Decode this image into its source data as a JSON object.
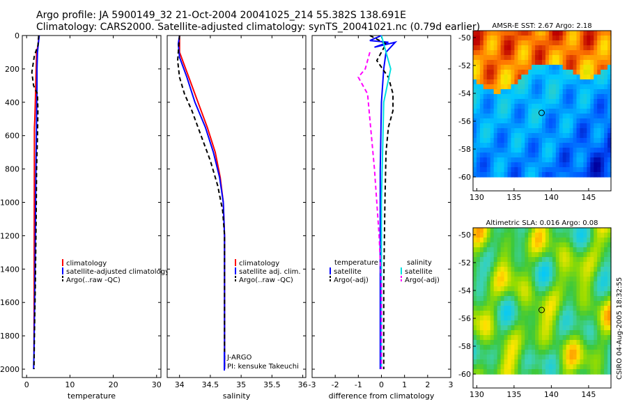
{
  "header": {
    "line1": "Argo profile: JA 5900149_32 21-Oct-2004 20041025_214 55.382S 138.691E",
    "line2": "Climatology: CARS2000. Satellite-adjusted climatology: synTS_20041021.nc (0.79d earlier)"
  },
  "credit": "CSIRO 04-Aug-2005 18:32:55",
  "colors": {
    "climatology": "#ff0000",
    "satellite": "#0000ff",
    "argo": "#000000",
    "salinity_satellite": "#00e0e0",
    "salinity_argo": "#ff00ff"
  },
  "chart_data": [
    {
      "type": "line",
      "xlabel": "temperature",
      "ylabel": "",
      "xlim": [
        -1,
        31
      ],
      "ylim": [
        2050,
        0
      ],
      "xticks": [
        0,
        10,
        20,
        30
      ],
      "yticks": [
        0,
        200,
        400,
        600,
        800,
        1000,
        1200,
        1400,
        1600,
        1800,
        2000
      ],
      "legend": [
        "climatology",
        "satellite-adjusted climatology",
        "Argo(..raw -QC)"
      ],
      "series": [
        {
          "name": "climatology",
          "color": "#ff0000",
          "dash": "",
          "x": [
            2.8,
            2.7,
            2.3,
            2.2,
            2.1,
            2.0,
            1.9,
            1.8,
            1.7
          ],
          "y": [
            0,
            50,
            100,
            200,
            300,
            400,
            500,
            550,
            1900
          ]
        },
        {
          "name": "satellite-adjusted climatology",
          "color": "#0000ff",
          "dash": "",
          "x": [
            2.9,
            2.7,
            2.5,
            2.4,
            2.4,
            2.3,
            2.2,
            2.1,
            2.0,
            1.9,
            1.8,
            1.7,
            1.6
          ],
          "y": [
            0,
            50,
            100,
            200,
            300,
            500,
            700,
            900,
            1200,
            1500,
            1700,
            1900,
            2000
          ]
        },
        {
          "name": "Argo(..raw -QC)",
          "color": "#000000",
          "dash": "6,4",
          "x": [
            2.8,
            2.6,
            1.8,
            1.2,
            1.6,
            2.5,
            2.6,
            2.5,
            2.3,
            2.2,
            2.0,
            1.8,
            1.7
          ],
          "y": [
            0,
            60,
            120,
            220,
            300,
            350,
            450,
            600,
            800,
            1100,
            1500,
            1800,
            2000
          ]
        }
      ]
    },
    {
      "type": "line",
      "xlabel": "salinity",
      "xlim": [
        33.8,
        36.05
      ],
      "ylim": [
        2050,
        0
      ],
      "xticks": [
        34,
        34.5,
        35,
        35.5,
        36
      ],
      "yticks": [
        0,
        200,
        400,
        600,
        800,
        1000,
        1200,
        1400,
        1600,
        1800,
        2000
      ],
      "legend": [
        "climatology",
        "satellite adj. clim.",
        "Argo(..raw -QC)"
      ],
      "annotations": [
        "J-ARGO",
        "PI: kensuke Takeuchi"
      ],
      "series": [
        {
          "name": "climatology",
          "color": "#ff0000",
          "dash": "",
          "x": [
            34.0,
            34.0,
            34.05,
            34.15,
            34.3,
            34.45,
            34.58,
            34.66,
            34.71,
            34.73,
            34.73,
            34.73
          ],
          "y": [
            0,
            100,
            150,
            250,
            400,
            550,
            700,
            850,
            1000,
            1200,
            1600,
            2000
          ]
        },
        {
          "name": "satellite adj. clim.",
          "color": "#0000ff",
          "dash": "",
          "x": [
            34.0,
            33.98,
            34.0,
            34.12,
            34.25,
            34.42,
            34.55,
            34.65,
            34.71,
            34.73,
            34.73,
            34.73
          ],
          "y": [
            0,
            50,
            130,
            250,
            400,
            550,
            700,
            850,
            1000,
            1200,
            1600,
            2000
          ]
        },
        {
          "name": "Argo(..raw -QC)",
          "color": "#000000",
          "dash": "6,4",
          "x": [
            34.0,
            33.98,
            33.97,
            34.0,
            34.08,
            34.2,
            34.35,
            34.5,
            34.62,
            34.7,
            34.73,
            34.73,
            34.73
          ],
          "y": [
            0,
            100,
            150,
            250,
            350,
            450,
            600,
            750,
            900,
            1050,
            1200,
            1600,
            2000
          ]
        }
      ]
    },
    {
      "type": "line",
      "xlabel": "difference from climatology",
      "xlim": [
        -3,
        3
      ],
      "ylim": [
        2050,
        0
      ],
      "xticks": [
        -3,
        -2,
        -1,
        0,
        1,
        2,
        3
      ],
      "yticks": [
        0,
        200,
        400,
        600,
        800,
        1000,
        1200,
        1400,
        1600,
        1800,
        2000
      ],
      "legend_left": [
        "temperature",
        "satellite",
        "Argo(-adj)"
      ],
      "legend_right": [
        "salinity",
        "satellite",
        "Argo(-adj)"
      ],
      "series": [
        {
          "name": "temperature satellite",
          "color": "#0000ff",
          "dash": "",
          "x": [
            0.0,
            -0.5,
            0.3,
            -0.3,
            0.6,
            0.2,
            0.1,
            0.0,
            -0.05,
            -0.05,
            -0.05
          ],
          "y": [
            0,
            30,
            40,
            70,
            40,
            100,
            200,
            400,
            800,
            1500,
            2000
          ]
        },
        {
          "name": "temperature Argo(-adj)",
          "color": "#000000",
          "dash": "6,4",
          "x": [
            -0.5,
            0.2,
            -0.2,
            0.3,
            0.5,
            0.5,
            0.3,
            0.2,
            0.15,
            0.1,
            0.1
          ],
          "y": [
            0,
            50,
            150,
            250,
            350,
            450,
            550,
            700,
            1000,
            1500,
            2000
          ]
        },
        {
          "name": "salinity satellite",
          "color": "#00e0e0",
          "dash": "",
          "x": [
            0.0,
            0.2,
            0.4,
            0.1,
            0.0,
            0.0
          ],
          "y": [
            0,
            100,
            200,
            400,
            1000,
            2000
          ]
        },
        {
          "name": "salinity Argo(-adj)",
          "color": "#ff00ff",
          "dash": "6,4",
          "x": [
            -0.5,
            -0.7,
            -1.0,
            -0.6,
            -0.5,
            -0.3,
            -0.1,
            0.0,
            0.0
          ],
          "y": [
            100,
            200,
            250,
            350,
            500,
            800,
            1200,
            1500,
            2000
          ]
        }
      ]
    },
    {
      "type": "heatmap",
      "title": "AMSR-E SST: 2.67 Argo: 2.18",
      "xlim": [
        129.5,
        148
      ],
      "ylim": [
        -61,
        -49.5
      ],
      "xticks": [
        130,
        135,
        140,
        145
      ],
      "yticks": [
        -50,
        -52,
        -54,
        -56,
        -58,
        -60
      ],
      "data_ylim": [
        -60,
        -49.5
      ],
      "marker": {
        "x": 138.7,
        "y": -55.4
      }
    },
    {
      "type": "heatmap",
      "title": "Altimetric SLA: 0.016 Argo: 0.08",
      "xlim": [
        129.5,
        148
      ],
      "ylim": [
        -61,
        -49.5
      ],
      "xticks": [
        130,
        135,
        140,
        145
      ],
      "yticks": [
        -50,
        -52,
        -54,
        -56,
        -58,
        -60
      ],
      "data_ylim": [
        -60,
        -49.5
      ],
      "marker": {
        "x": 138.7,
        "y": -55.4
      }
    }
  ]
}
